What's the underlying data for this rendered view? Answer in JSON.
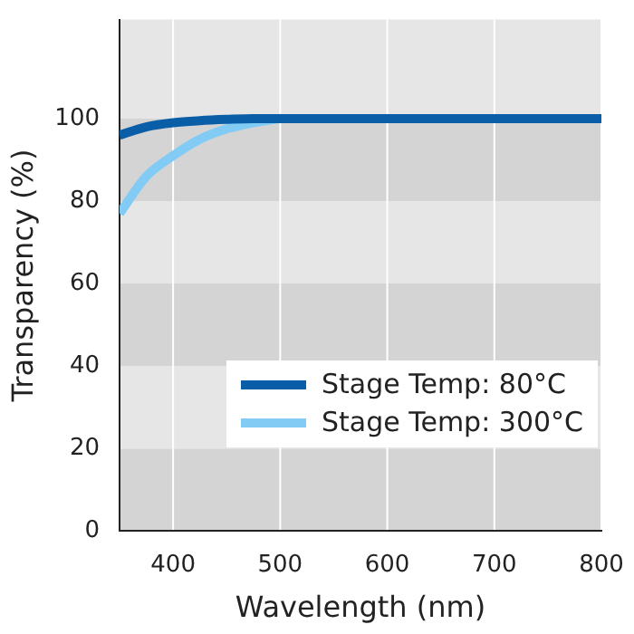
{
  "chart_data": {
    "type": "line",
    "xlabel": "Wavelength (nm)",
    "ylabel": "Transparency (%)",
    "xlim": [
      350,
      800
    ],
    "xticks": [
      400,
      500,
      600,
      700,
      800
    ],
    "ylim": [
      0,
      124
    ],
    "yticks": [
      0,
      20,
      40,
      60,
      80,
      100
    ],
    "grid": true,
    "legend": "bottom right",
    "marker": "none",
    "line_style": "solid",
    "series": [
      {
        "name": "Stage Temp: 80°C",
        "color": "#0a5ea8",
        "x": [
          350,
          375,
          400,
          425,
          450,
          475,
          500,
          550,
          600,
          700,
          800
        ],
        "values": [
          96,
          98,
          99,
          99.5,
          99.8,
          100,
          100,
          100,
          100,
          100,
          100
        ]
      },
      {
        "name": "Stage Temp: 300°C",
        "color": "#82cbf5",
        "x": [
          350,
          375,
          400,
          425,
          450,
          475,
          500
        ],
        "values": [
          77,
          86,
          91,
          95,
          97.5,
          99,
          100
        ]
      }
    ]
  }
}
